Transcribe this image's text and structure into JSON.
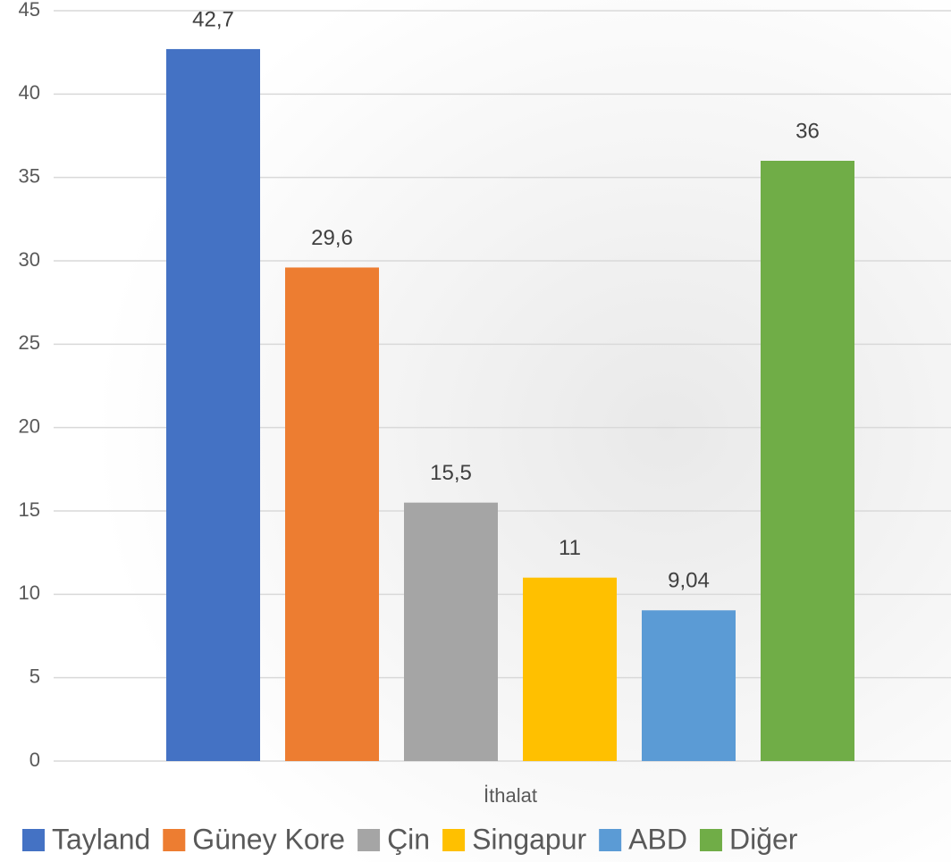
{
  "chart_data": {
    "type": "bar",
    "categories": [
      "İthalat"
    ],
    "series": [
      {
        "name": "Tayland",
        "color": "#4472c4",
        "values": [
          42.7
        ],
        "value_labels": [
          "42,7"
        ]
      },
      {
        "name": "Güney Kore",
        "color": "#ed7d31",
        "values": [
          29.6
        ],
        "value_labels": [
          "29,6"
        ]
      },
      {
        "name": "Çin",
        "color": "#a5a5a5",
        "values": [
          15.5
        ],
        "value_labels": [
          "15,5"
        ]
      },
      {
        "name": "Singapur",
        "color": "#ffc000",
        "values": [
          11
        ]
      },
      {
        "name": "ABD",
        "color": "#5b9bd5",
        "values": [
          9.04
        ],
        "value_labels": [
          "9,04"
        ]
      },
      {
        "name": "Diğer",
        "color": "#70ad47",
        "values": [
          36
        ]
      }
    ],
    "ylim": [
      0,
      45
    ],
    "yticks": [
      0,
      5,
      10,
      15,
      20,
      25,
      30,
      35,
      40,
      45
    ],
    "grid": true
  }
}
